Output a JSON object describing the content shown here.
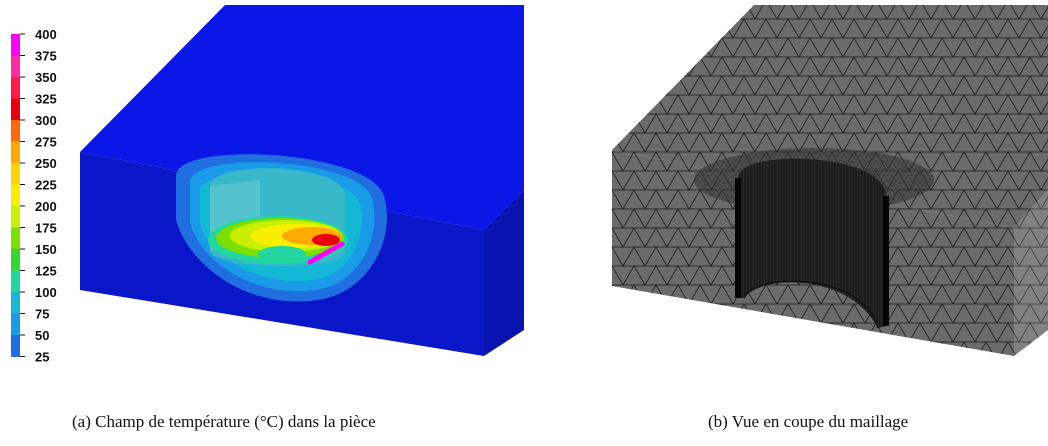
{
  "figure_a": {
    "caption": "(a) Champ de température (°C) dans la pièce",
    "colorbar": {
      "ticks": [
        "400",
        "375",
        "350",
        "325",
        "300",
        "275",
        "250",
        "225",
        "200",
        "175",
        "150",
        "125",
        "100",
        "75",
        "50",
        "25"
      ],
      "colors": [
        "#ff00ff",
        "#ff2aa6",
        "#ff1a4a",
        "#e8000d",
        "#ff6a00",
        "#ffaa00",
        "#ffd400",
        "#f6f000",
        "#c8ee00",
        "#7be000",
        "#33d633",
        "#22d6a0",
        "#12b8d6",
        "#1a9be8",
        "#1f6fe0",
        "#1a1fd6"
      ]
    },
    "colors": {
      "block_top": "#0a17e6",
      "block_front": "#0a17c8",
      "block_side": "#0813b0"
    }
  },
  "figure_b": {
    "caption": "(b) Vue en coupe du maillage",
    "colors": {
      "mesh_fill": "#6b6b6b",
      "mesh_line": "#1a1a1a",
      "mesh_dark": "#141414"
    }
  }
}
